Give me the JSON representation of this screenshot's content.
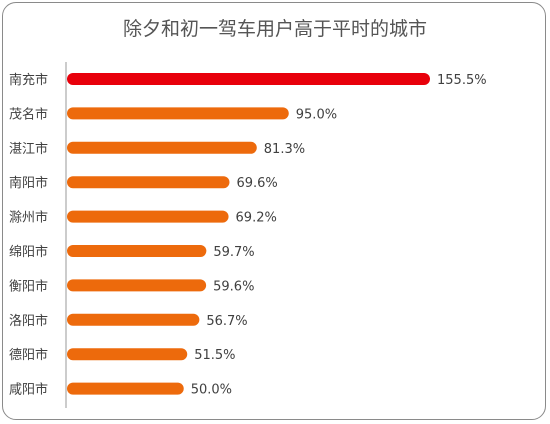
{
  "chart_data": {
    "type": "bar",
    "orientation": "horizontal",
    "title": "除夕和初一驾车用户高于平时的城市",
    "categories": [
      "南充市",
      "茂名市",
      "湛江市",
      "南阳市",
      "滁州市",
      "绵阳市",
      "衡阳市",
      "洛阳市",
      "德阳市",
      "咸阳市"
    ],
    "values": [
      155.5,
      95.0,
      81.3,
      69.6,
      69.2,
      59.7,
      59.6,
      56.7,
      51.5,
      50.0
    ],
    "value_labels": [
      "155.5%",
      "95.0%",
      "81.3%",
      "69.6%",
      "69.2%",
      "59.7%",
      "59.6%",
      "56.7%",
      "51.5%",
      "50.0%"
    ],
    "unit": "%",
    "grid": false,
    "legend": "none",
    "colors": {
      "highlight": "#e8000b",
      "default": "#ed6a0c",
      "axis": "#9a9a9a",
      "text": "#404040",
      "title": "#555555"
    },
    "highlight_index": 0
  }
}
